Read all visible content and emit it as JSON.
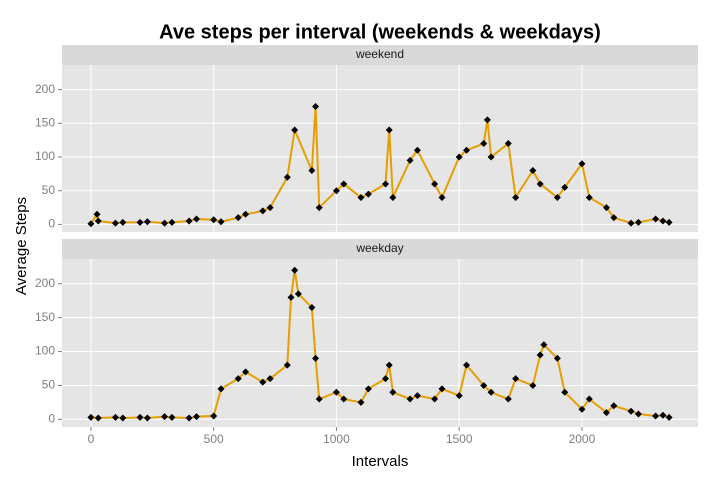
{
  "chart_data": {
    "type": "line",
    "title": "Ave steps per interval (weekends & weekdays)",
    "x_label": "Intervals",
    "y_label": "Average Steps",
    "xlim": [
      -117.75,
      2472.75
    ],
    "xticks": [
      0,
      500,
      1000,
      1500,
      2000
    ],
    "ylim": [
      -11.25,
      236.5
    ],
    "yticks": [
      0,
      50,
      100,
      150,
      200
    ],
    "grid": true,
    "color": "#e69f00",
    "point_color": "#000000",
    "panels": [
      {
        "name": "weekend",
        "x": [
          0,
          25,
          30,
          100,
          130,
          200,
          230,
          300,
          330,
          400,
          430,
          500,
          530,
          600,
          630,
          700,
          730,
          800,
          830,
          900,
          915,
          930,
          1000,
          1030,
          1100,
          1130,
          1200,
          1215,
          1230,
          1300,
          1330,
          1400,
          1430,
          1500,
          1530,
          1600,
          1615,
          1630,
          1700,
          1730,
          1800,
          1830,
          1900,
          1930,
          2000,
          2030,
          2100,
          2130,
          2200,
          2230,
          2300,
          2330,
          2355
        ],
        "values": [
          1,
          15,
          5,
          2,
          3,
          3,
          4,
          2,
          3,
          5,
          8,
          7,
          4,
          10,
          15,
          20,
          25,
          70,
          140,
          80,
          175,
          25,
          50,
          60,
          40,
          45,
          60,
          140,
          40,
          95,
          110,
          60,
          40,
          100,
          110,
          120,
          155,
          100,
          120,
          40,
          80,
          60,
          40,
          55,
          90,
          40,
          25,
          10,
          2,
          3,
          8,
          5,
          3
        ]
      },
      {
        "name": "weekday",
        "x": [
          0,
          30,
          100,
          130,
          200,
          230,
          300,
          330,
          400,
          430,
          500,
          530,
          600,
          630,
          700,
          730,
          800,
          815,
          830,
          845,
          900,
          915,
          930,
          1000,
          1030,
          1100,
          1130,
          1200,
          1215,
          1230,
          1300,
          1330,
          1400,
          1430,
          1500,
          1530,
          1600,
          1630,
          1700,
          1730,
          1800,
          1830,
          1845,
          1900,
          1930,
          2000,
          2030,
          2100,
          2130,
          2200,
          2230,
          2300,
          2330,
          2355
        ],
        "values": [
          3,
          2,
          3,
          2,
          3,
          2,
          4,
          3,
          2,
          4,
          5,
          45,
          60,
          70,
          55,
          60,
          80,
          180,
          220,
          185,
          165,
          90,
          30,
          40,
          30,
          25,
          45,
          60,
          80,
          40,
          30,
          35,
          30,
          45,
          35,
          80,
          50,
          40,
          30,
          60,
          50,
          95,
          110,
          90,
          40,
          15,
          30,
          10,
          20,
          12,
          8,
          5,
          6,
          3
        ]
      }
    ]
  }
}
